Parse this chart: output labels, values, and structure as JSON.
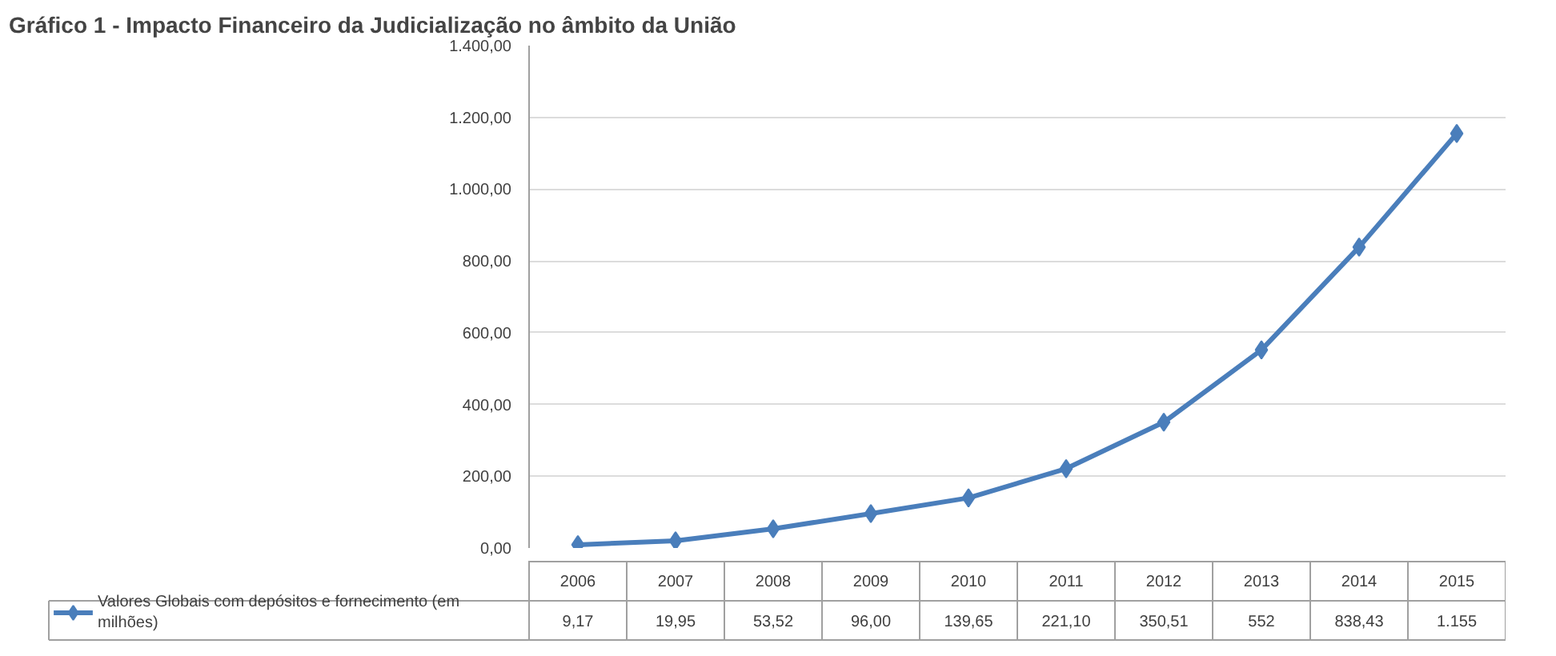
{
  "chart_data": {
    "type": "line",
    "title": "Gráfico 1 - Impacto Financeiro da Judicialização no âmbito da União",
    "categories": [
      "2006",
      "2007",
      "2008",
      "2009",
      "2010",
      "2011",
      "2012",
      "2013",
      "2014",
      "2015"
    ],
    "series": [
      {
        "name": "Valores Globais com depósitos e fornecimento (em milhões)",
        "color": "#4a7ebb",
        "values": [
          9.17,
          19.95,
          53.52,
          96.0,
          139.65,
          221.1,
          350.51,
          552,
          838.43,
          1155
        ],
        "value_labels": [
          "9,17",
          "19,95",
          "53,52",
          "96,00",
          "139,65",
          "221,10",
          "350,51",
          "552",
          "838,43",
          "1.155"
        ]
      }
    ],
    "ylim": [
      0,
      1400
    ],
    "yticks": [
      {
        "value": 0,
        "label": "0,00"
      },
      {
        "value": 200,
        "label": "200,00"
      },
      {
        "value": 400,
        "label": "400,00"
      },
      {
        "value": 600,
        "label": "600,00"
      },
      {
        "value": 800,
        "label": "800,00"
      },
      {
        "value": 1000,
        "label": "1.000,00"
      },
      {
        "value": 1200,
        "label": "1.200,00"
      },
      {
        "value": 1400,
        "label": "1.400,00"
      }
    ],
    "grid": "y",
    "marker": "diamond",
    "line_style": "solid",
    "legend": "bottom"
  }
}
